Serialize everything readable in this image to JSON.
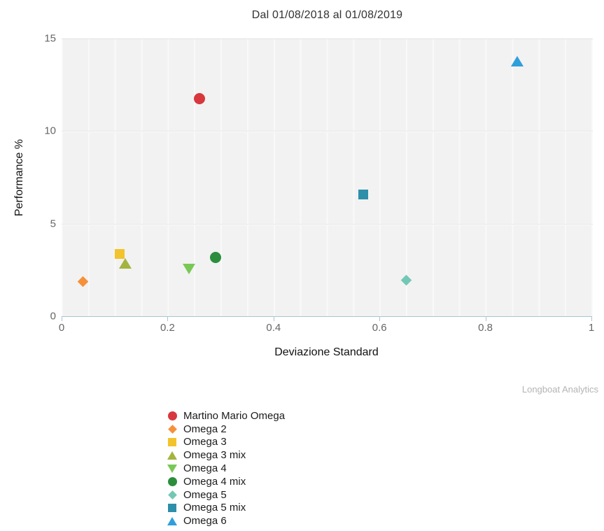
{
  "watermark": "Longboat Analytics",
  "chart_data": {
    "type": "scatter",
    "title": "Dal 01/08/2018 al 01/08/2019",
    "xlabel": "Deviazione Standard",
    "ylabel": "Performance %",
    "xlim": [
      0,
      1
    ],
    "ylim": [
      0,
      15
    ],
    "grid": true,
    "legend_position": "bottom",
    "x_ticks": [
      {
        "value": 0,
        "label": "0"
      },
      {
        "value": 0.2,
        "label": "0.2"
      },
      {
        "value": 0.4,
        "label": "0.4"
      },
      {
        "value": 0.6,
        "label": "0.6"
      },
      {
        "value": 0.8,
        "label": "0.8"
      },
      {
        "value": 1,
        "label": "1"
      }
    ],
    "y_ticks": [
      {
        "value": 0,
        "label": "0"
      },
      {
        "value": 5,
        "label": "5"
      },
      {
        "value": 10,
        "label": "10"
      },
      {
        "value": 15,
        "label": "15"
      }
    ],
    "y_gridlines": [
      5,
      10
    ],
    "series": [
      {
        "name": "Martino Mario Omega",
        "marker": "circle",
        "color": "#d7373d",
        "x": 0.26,
        "y": 11.8
      },
      {
        "name": "Omega 2",
        "marker": "diamond",
        "color": "#f5913a",
        "x": 0.04,
        "y": 1.9
      },
      {
        "name": "Omega 3",
        "marker": "square",
        "color": "#f3c32c",
        "x": 0.11,
        "y": 3.4
      },
      {
        "name": "Omega 3 mix",
        "marker": "tri-up",
        "color": "#a4b43f",
        "x": 0.12,
        "y": 2.9
      },
      {
        "name": "Omega 4",
        "marker": "tri-down",
        "color": "#79c856",
        "x": 0.24,
        "y": 2.6
      },
      {
        "name": "Omega 4 mix",
        "marker": "circle",
        "color": "#2c8e3c",
        "x": 0.29,
        "y": 3.2
      },
      {
        "name": "Omega 5",
        "marker": "diamond",
        "color": "#72c8b4",
        "x": 0.65,
        "y": 2.0
      },
      {
        "name": "Omega 5 mix",
        "marker": "square",
        "color": "#2d8fa9",
        "x": 0.57,
        "y": 6.6
      },
      {
        "name": "Omega 6",
        "marker": "tri-up",
        "color": "#2f9fdc",
        "x": 0.86,
        "y": 13.8
      }
    ]
  }
}
